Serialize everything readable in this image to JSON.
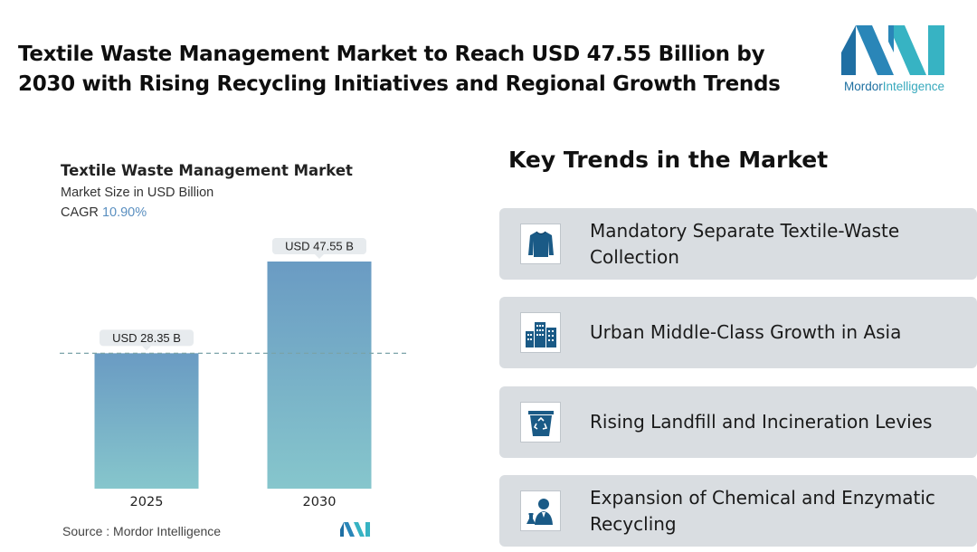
{
  "header": {
    "title": "Textile Waste Management Market to Reach USD 47.55 Billion by 2030 with Rising Recycling Initiatives and Regional Growth Trends",
    "logo_text_1": "Mordor",
    "logo_text_2": "Intelligence"
  },
  "chart_data": {
    "type": "bar",
    "title": "Textile Waste Management Market",
    "subtitle": "Market Size in USD Billion",
    "cagr_label": "CAGR",
    "cagr_value": "10.90%",
    "categories": [
      "2025",
      "2030"
    ],
    "values": [
      28.35,
      47.55
    ],
    "data_labels": [
      "USD 28.35 B",
      "USD 47.55 B"
    ],
    "ylim": [
      0,
      47.55
    ],
    "reference_line_value": 28.35,
    "grid": false,
    "colors": {
      "bar_top": "#6a9bc3",
      "bar_bottom": "#86c6cc",
      "dashed_line": "#7aa3a8"
    }
  },
  "footer": {
    "source": "Source :  Mordor Intelligence"
  },
  "trends": {
    "title": "Key Trends in the Market",
    "items": [
      {
        "label": "Mandatory Separate Textile-Waste Collection",
        "icon": "shirt-icon"
      },
      {
        "label": "Urban Middle-Class Growth in Asia",
        "icon": "buildings-icon"
      },
      {
        "label": "Rising Landfill and Incineration Levies",
        "icon": "recycle-bin-icon"
      },
      {
        "label": "Expansion of Chemical and Enzymatic Recycling",
        "icon": "scientist-icon"
      }
    ]
  },
  "colors": {
    "logo_dark": "#1f6fa3",
    "logo_light": "#37b3c3",
    "icon": "#1a5a86",
    "card_bg": "#d9dde1"
  }
}
